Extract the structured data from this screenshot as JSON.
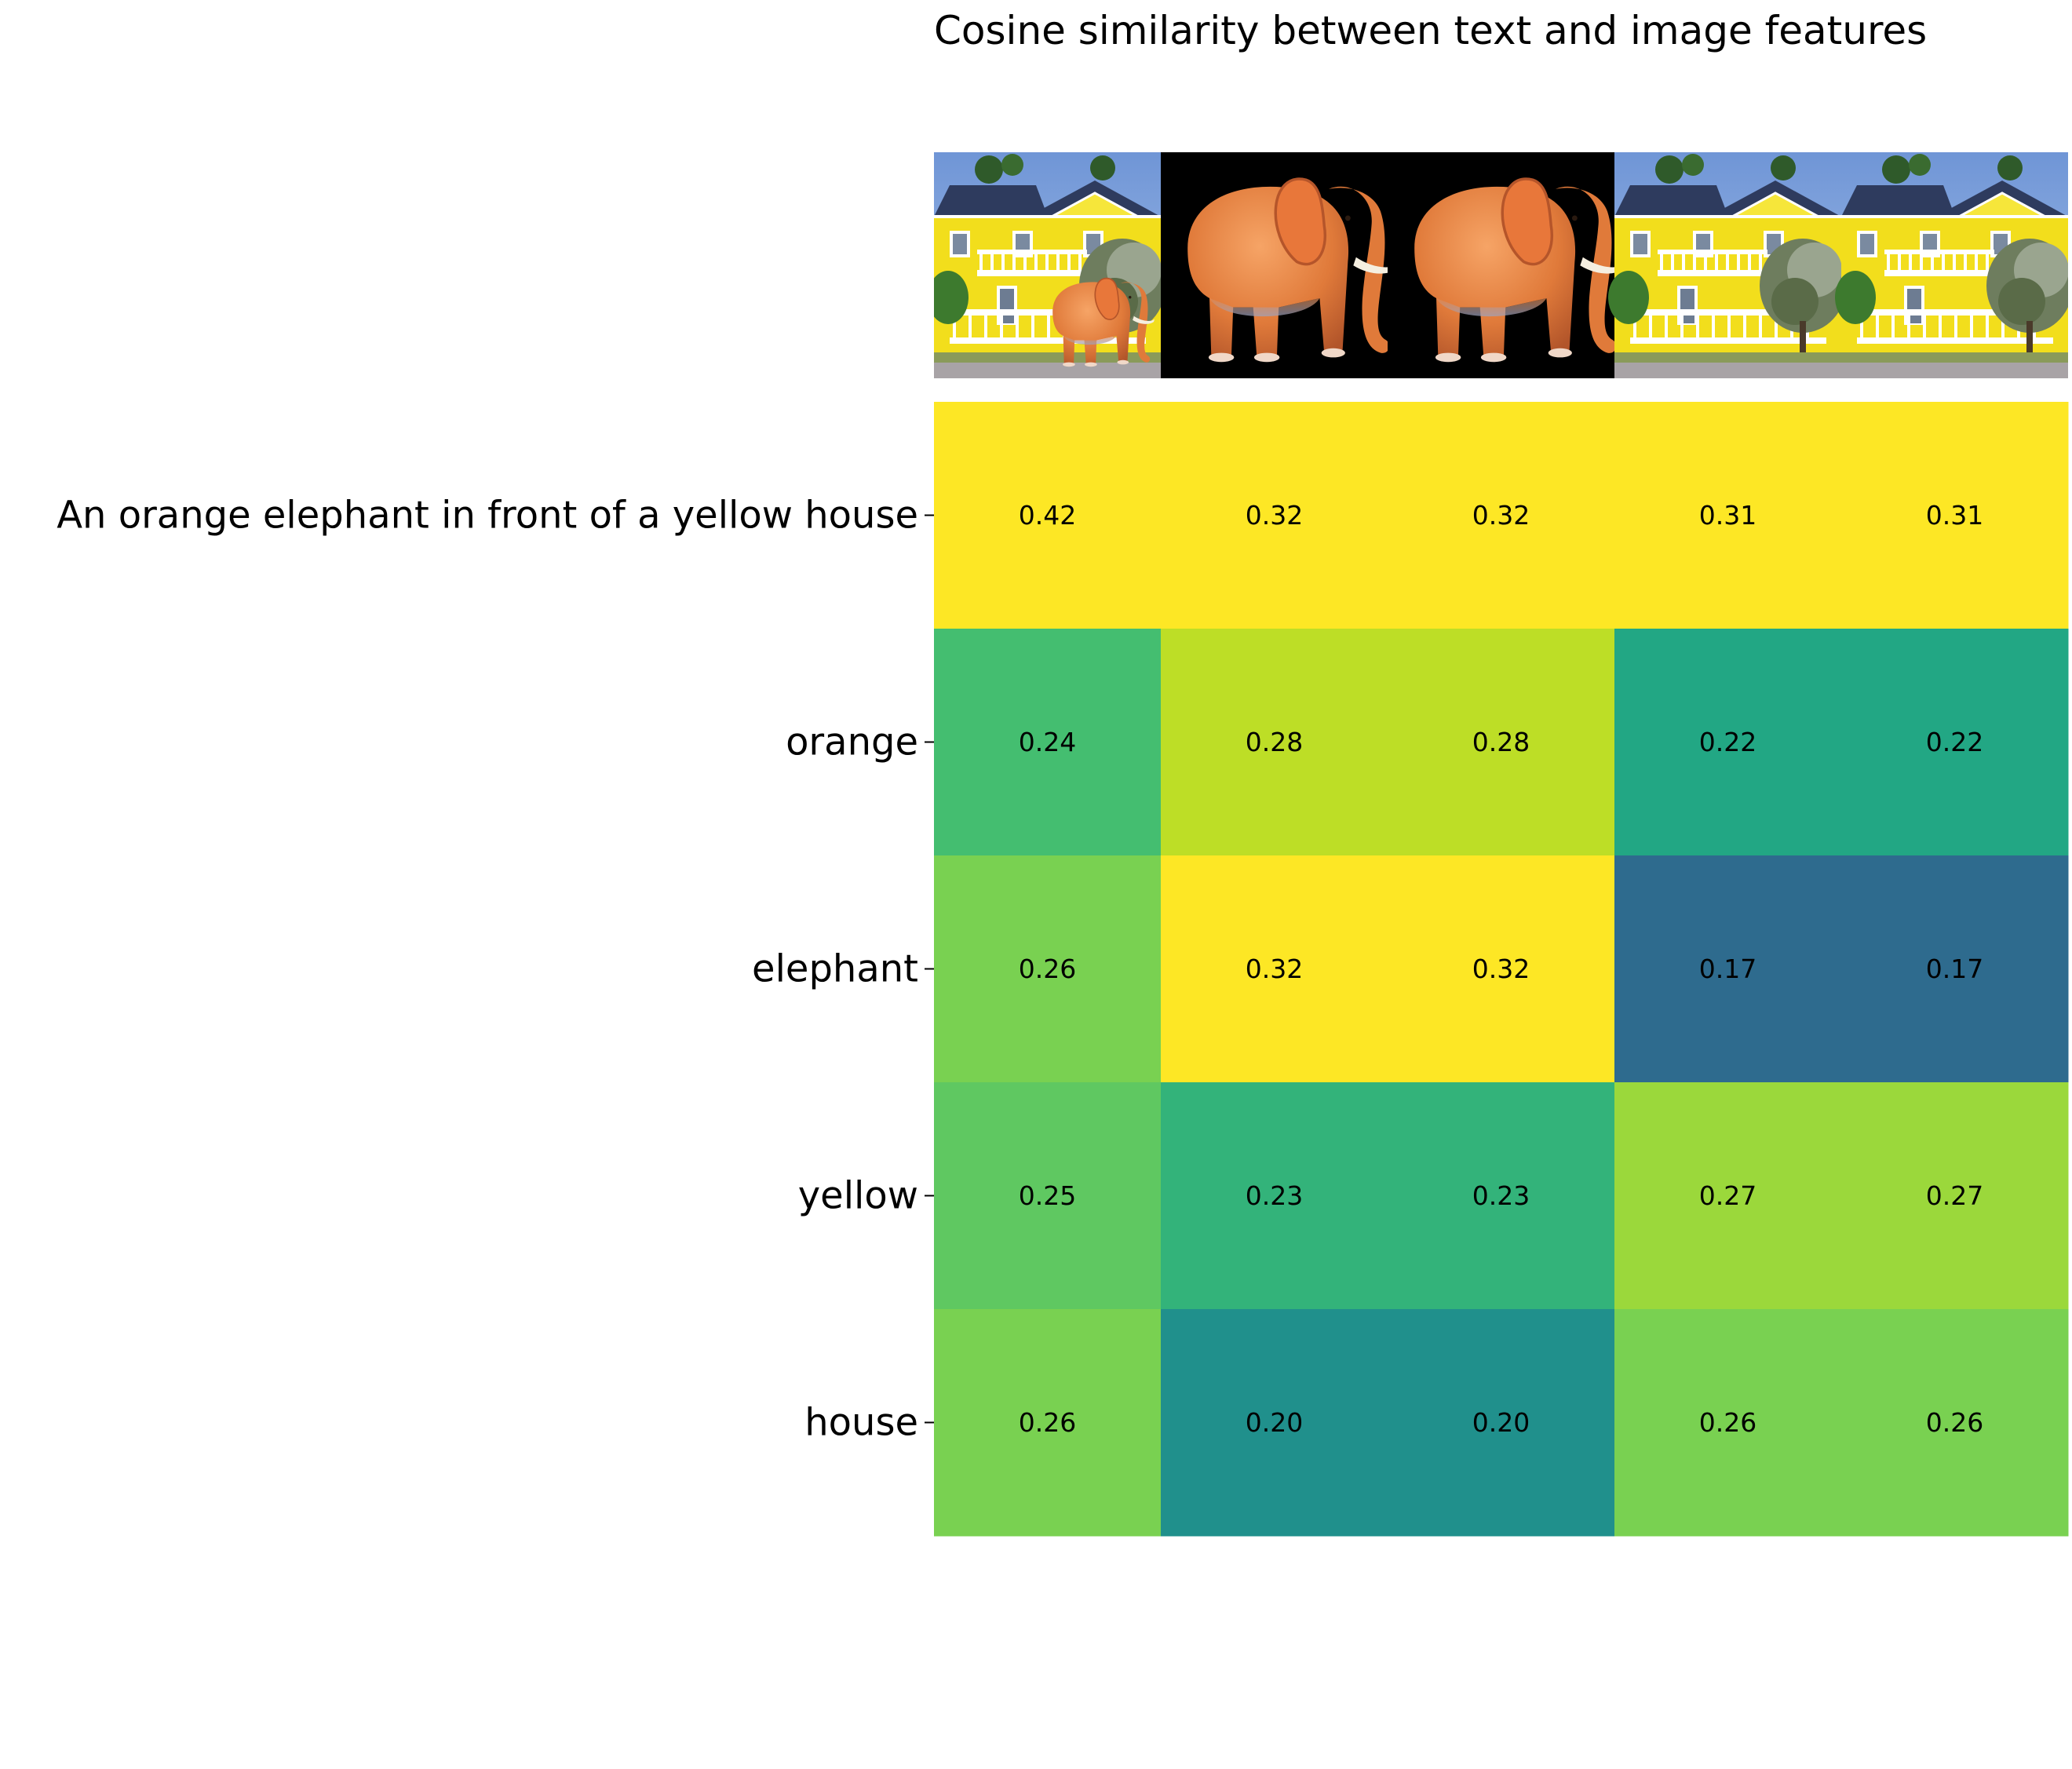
{
  "chart_data": {
    "type": "heatmap",
    "title": "Cosine similarity between text and image features",
    "xlabel": "",
    "ylabel": "",
    "rows": [
      "An orange elephant in front of a yellow house",
      "orange",
      "elephant",
      "yellow",
      "house"
    ],
    "columns": [
      {
        "image": "elephant-in-front-of-yellow-house"
      },
      {
        "image": "orange-elephant-on-black"
      },
      {
        "image": "orange-elephant-on-black"
      },
      {
        "image": "yellow-house"
      },
      {
        "image": "yellow-house"
      }
    ],
    "values": [
      [
        0.42,
        0.32,
        0.32,
        0.31,
        0.31
      ],
      [
        0.24,
        0.28,
        0.28,
        0.22,
        0.22
      ],
      [
        0.26,
        0.32,
        0.32,
        0.17,
        0.17
      ],
      [
        0.25,
        0.23,
        0.23,
        0.27,
        0.27
      ],
      [
        0.26,
        0.2,
        0.2,
        0.26,
        0.26
      ]
    ],
    "labels": [
      [
        "0.42",
        "0.32",
        "0.32",
        "0.31",
        "0.31"
      ],
      [
        "0.24",
        "0.28",
        "0.28",
        "0.22",
        "0.22"
      ],
      [
        "0.26",
        "0.32",
        "0.32",
        "0.17",
        "0.17"
      ],
      [
        "0.25",
        "0.23",
        "0.23",
        "0.27",
        "0.27"
      ],
      [
        "0.26",
        "0.20",
        "0.20",
        "0.26",
        "0.26"
      ]
    ],
    "colormap": "viridis",
    "vmin": 0.1,
    "vmax": 0.3,
    "grid": false,
    "legend": "none"
  }
}
